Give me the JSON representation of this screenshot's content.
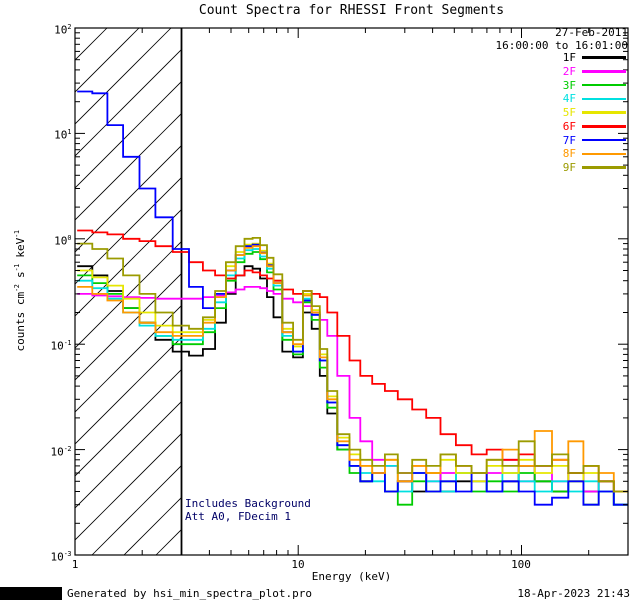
{
  "header": {
    "date": "27-Feb-2011",
    "time_range": "16:00:00 to 16:01:00"
  },
  "annotations": {
    "line1": "Includes Background",
    "line2": "Att A0, FDecim 1",
    "color": "#000066"
  },
  "footer": {
    "left": "Generated by hsi_min_spectra_plot.pro",
    "right": "18-Apr-2023 21:43"
  },
  "chart_data": {
    "type": "line",
    "title": "Count Spectra for RHESSI Front Segments",
    "xlabel": "Energy (keV)",
    "ylabel": "counts cm^-2 s^-1 keV^-1",
    "xscale": "log",
    "yscale": "log",
    "xlim": [
      1,
      300
    ],
    "ylim": [
      0.001,
      100
    ],
    "grid": false,
    "legend_position": "top-right-inside",
    "hatch_region": {
      "from": 1,
      "to": 3
    },
    "x_ticks": [
      {
        "v": 1,
        "label": "1"
      },
      {
        "v": 10,
        "label": "10"
      },
      {
        "v": 100,
        "label": "100"
      }
    ],
    "y_ticks": [
      {
        "v": 100,
        "label": "10^2"
      },
      {
        "v": 10,
        "label": "10^1"
      },
      {
        "v": 1,
        "label": "10^0"
      },
      {
        "v": 0.1,
        "label": "10^-1"
      },
      {
        "v": 0.01,
        "label": "10^-2"
      },
      {
        "v": 0.001,
        "label": "10^-3"
      }
    ],
    "x": [
      1.1,
      1.3,
      1.5,
      1.8,
      2.1,
      2.5,
      3.0,
      3.5,
      4.0,
      4.5,
      5.0,
      5.5,
      6.0,
      6.5,
      7.0,
      7.5,
      8.0,
      9.0,
      10,
      11,
      12,
      13,
      14,
      16,
      18,
      20,
      23,
      26,
      30,
      35,
      40,
      47,
      55,
      65,
      75,
      90,
      105,
      125,
      150,
      175,
      205,
      240,
      280
    ],
    "series": [
      {
        "name": "1F",
        "color": "#000000",
        "values": [
          0.55,
          0.45,
          0.32,
          0.22,
          0.16,
          0.11,
          0.085,
          0.078,
          0.09,
          0.16,
          0.3,
          0.45,
          0.55,
          0.52,
          0.42,
          0.28,
          0.18,
          0.085,
          0.075,
          0.2,
          0.14,
          0.05,
          0.022,
          0.01,
          0.007,
          0.005,
          0.006,
          0.004,
          0.005,
          0.004,
          0.006,
          0.004,
          0.005,
          0.006,
          0.004,
          0.005,
          0.007,
          0.005,
          0.004,
          0.006,
          0.004,
          0.005,
          0.003
        ]
      },
      {
        "name": "2F",
        "color": "#ff00ff",
        "values": [
          0.3,
          0.29,
          0.285,
          0.28,
          0.275,
          0.27,
          0.27,
          0.27,
          0.28,
          0.29,
          0.31,
          0.33,
          0.35,
          0.35,
          0.34,
          0.32,
          0.3,
          0.27,
          0.25,
          0.23,
          0.2,
          0.17,
          0.12,
          0.05,
          0.02,
          0.012,
          0.008,
          0.007,
          0.006,
          0.007,
          0.005,
          0.006,
          0.007,
          0.005,
          0.006,
          0.008,
          0.005,
          0.007,
          0.005,
          0.006,
          0.004,
          0.005,
          0.004
        ]
      },
      {
        "name": "3F",
        "color": "#00cc00",
        "values": [
          0.45,
          0.38,
          0.3,
          0.22,
          0.16,
          0.12,
          0.1,
          0.1,
          0.13,
          0.22,
          0.4,
          0.6,
          0.72,
          0.75,
          0.64,
          0.48,
          0.33,
          0.11,
          0.08,
          0.25,
          0.17,
          0.06,
          0.025,
          0.01,
          0.006,
          0.005,
          0.006,
          0.004,
          0.003,
          0.005,
          0.004,
          0.005,
          0.006,
          0.004,
          0.005,
          0.004,
          0.006,
          0.005,
          0.004,
          0.005,
          0.003,
          0.004,
          0.003
        ]
      },
      {
        "name": "4F",
        "color": "#00e0e0",
        "values": [
          0.4,
          0.34,
          0.27,
          0.2,
          0.15,
          0.12,
          0.11,
          0.11,
          0.14,
          0.25,
          0.45,
          0.65,
          0.78,
          0.8,
          0.68,
          0.52,
          0.36,
          0.12,
          0.085,
          0.27,
          0.19,
          0.07,
          0.028,
          0.011,
          0.007,
          0.006,
          0.005,
          0.007,
          0.004,
          0.006,
          0.005,
          0.004,
          0.006,
          0.005,
          0.004,
          0.006,
          0.005,
          0.004,
          0.005,
          0.004,
          0.005,
          0.004,
          0.003
        ]
      },
      {
        "name": "5F",
        "color": "#e6e600",
        "values": [
          0.5,
          0.43,
          0.36,
          0.27,
          0.2,
          0.15,
          0.13,
          0.13,
          0.17,
          0.3,
          0.55,
          0.75,
          0.88,
          0.9,
          0.77,
          0.58,
          0.4,
          0.14,
          0.095,
          0.3,
          0.21,
          0.08,
          0.032,
          0.013,
          0.009,
          0.007,
          0.006,
          0.008,
          0.005,
          0.007,
          0.006,
          0.008,
          0.006,
          0.005,
          0.007,
          0.006,
          0.008,
          0.006,
          0.007,
          0.005,
          0.006,
          0.005,
          0.004
        ]
      },
      {
        "name": "6F",
        "color": "#ff0000",
        "values": [
          1.2,
          1.15,
          1.1,
          1.0,
          0.95,
          0.85,
          0.75,
          0.6,
          0.5,
          0.45,
          0.42,
          0.45,
          0.5,
          0.48,
          0.45,
          0.42,
          0.4,
          0.33,
          0.3,
          0.32,
          0.3,
          0.28,
          0.2,
          0.12,
          0.07,
          0.05,
          0.042,
          0.036,
          0.03,
          0.024,
          0.02,
          0.014,
          0.011,
          0.009,
          0.01,
          0.008,
          0.009,
          0.007,
          0.008,
          0.006,
          0.007,
          0.005,
          0.004
        ]
      },
      {
        "name": "7F",
        "color": "#0000ff",
        "values": [
          25,
          24,
          12,
          6,
          3,
          1.6,
          0.8,
          0.35,
          0.22,
          0.3,
          0.5,
          0.7,
          0.85,
          0.88,
          0.74,
          0.56,
          0.38,
          0.13,
          0.085,
          0.26,
          0.19,
          0.07,
          0.028,
          0.011,
          0.007,
          0.005,
          0.006,
          0.004,
          0.005,
          0.006,
          0.004,
          0.005,
          0.004,
          0.006,
          0.004,
          0.005,
          0.004,
          0.003,
          0.0035,
          0.005,
          0.003,
          0.004,
          0.003
        ]
      },
      {
        "name": "8F",
        "color": "#ff9900",
        "values": [
          0.35,
          0.3,
          0.26,
          0.2,
          0.16,
          0.13,
          0.12,
          0.12,
          0.16,
          0.28,
          0.5,
          0.7,
          0.82,
          0.85,
          0.73,
          0.55,
          0.38,
          0.13,
          0.1,
          0.29,
          0.2,
          0.075,
          0.03,
          0.012,
          0.008,
          0.007,
          0.006,
          0.008,
          0.005,
          0.007,
          0.006,
          0.009,
          0.007,
          0.006,
          0.008,
          0.01,
          0.007,
          0.015,
          0.008,
          0.012,
          0.007,
          0.006,
          0.004
        ]
      },
      {
        "name": "9F",
        "color": "#9b9b00",
        "values": [
          0.9,
          0.8,
          0.65,
          0.45,
          0.3,
          0.2,
          0.15,
          0.14,
          0.18,
          0.32,
          0.6,
          0.85,
          1.0,
          1.02,
          0.87,
          0.66,
          0.46,
          0.16,
          0.11,
          0.32,
          0.23,
          0.09,
          0.036,
          0.014,
          0.01,
          0.008,
          0.007,
          0.009,
          0.006,
          0.008,
          0.007,
          0.009,
          0.007,
          0.006,
          0.008,
          0.007,
          0.012,
          0.007,
          0.009,
          0.006,
          0.007,
          0.005,
          0.004
        ]
      }
    ]
  }
}
